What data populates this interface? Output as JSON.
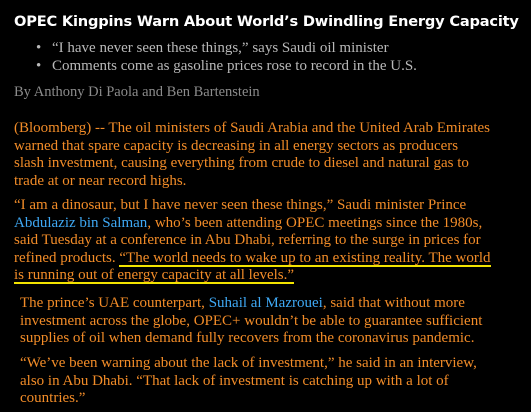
{
  "article": {
    "headline": "OPEC Kingpins Warn About World’s Dwindling Energy Capacity",
    "bullets": [
      "“I have never seen these things,” says Saudi oil minister",
      "Comments come as gasoline prices rose to record in the U.S."
    ],
    "byline": "By Anthony Di Paola and Ben Bartenstein",
    "p1_lines": [
      "(Bloomberg) -- The oil ministers of Saudi Arabia and the United Arab Emirates",
      "warned that spare capacity is decreasing in all energy sectors as producers",
      "slash investment, causing everything from crude to diesel and natural gas to",
      "trade at or near record highs."
    ],
    "p2": {
      "line1": "“I am a dinosaur, but I have never seen these things,” Saudi minister Prince",
      "link": "Abdulaziz bin Salman",
      "line2_rest": ", who’s been attending OPEC meetings since the 1980s,",
      "line3": "said Tuesday at a conference in Abu Dhabi, referring to the surge in prices for",
      "line4_start": "refined products. ",
      "quote_part1": "“The world needs to wake up to an existing reality. The world",
      "quote_part2": "is running out of energy capacity at all levels.”"
    },
    "p3": {
      "line1_start": "The prince’s UAE counterpart, ",
      "link": "Suhail al Mazrouei",
      "line1_end": ", said that without more",
      "line2": "investment across the globe, OPEC+ wouldn’t be able to guarantee sufficient",
      "line3": "supplies of oil when demand fully recovers from the coronavirus pandemic."
    },
    "p4_lines": [
      "“We’ve been warning about the lack of investment,” he said in an interview,",
      "also in Abu Dhabi. “That lack of investment is catching up with a lot of",
      "countries.”"
    ]
  },
  "colors": {
    "background": "#000000",
    "headline": "#ffffff",
    "body_text": "#f28c28",
    "link": "#3fa9f5",
    "highlight_underline": "#f2e300",
    "bullet_text": "#b9b9b9",
    "byline": "#8c8c8c"
  }
}
